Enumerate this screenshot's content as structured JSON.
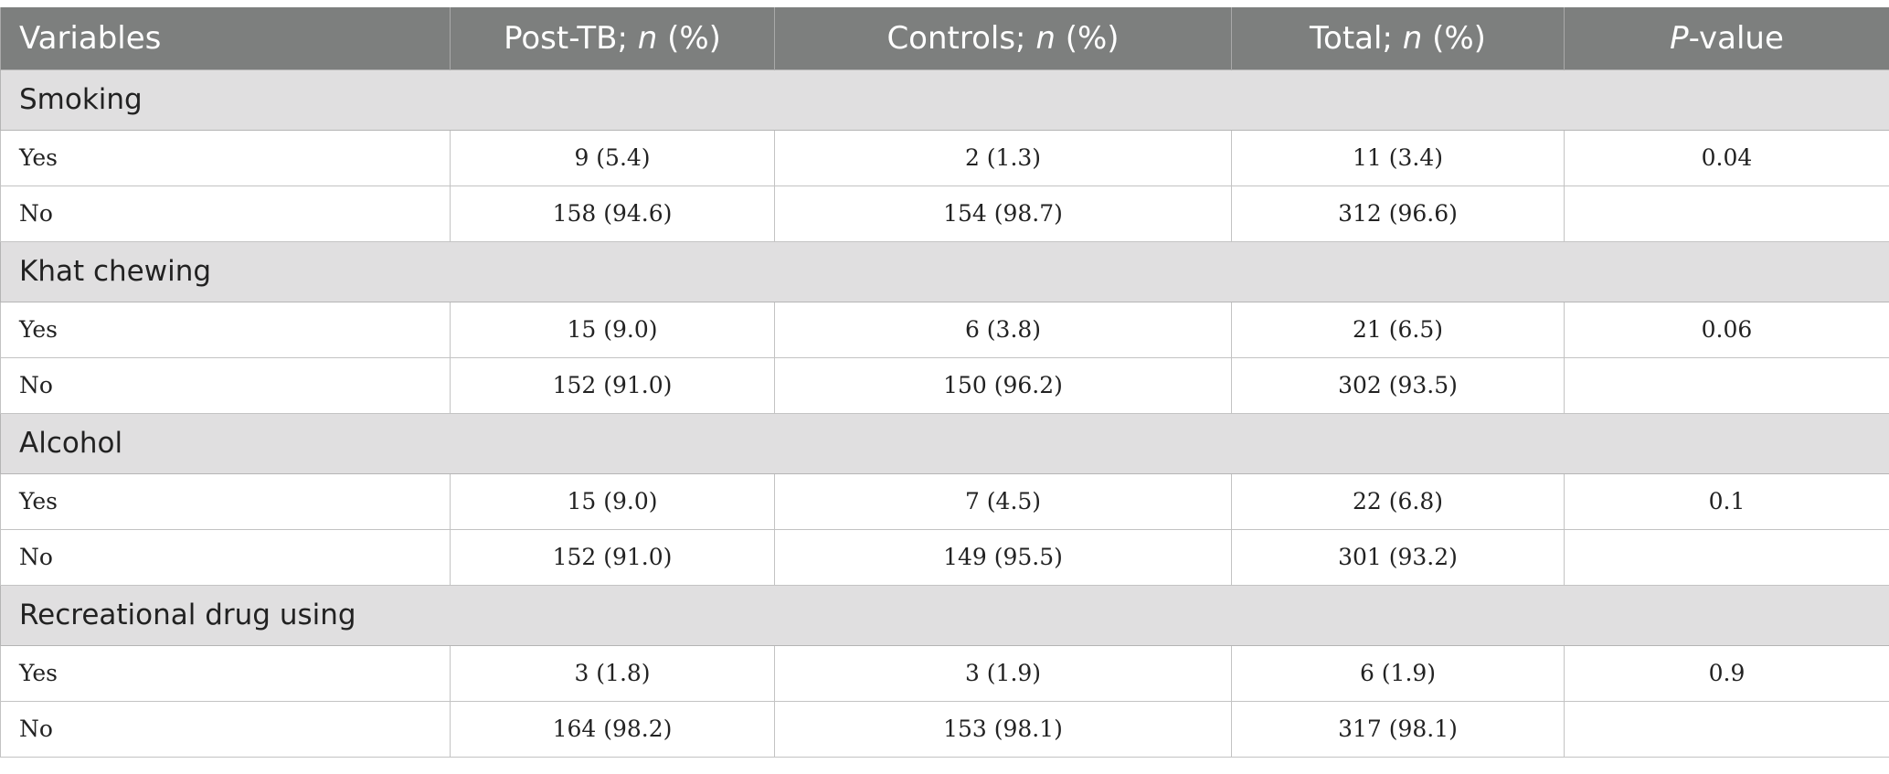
{
  "header": {
    "variables": "Variables",
    "post_tb_main": "Post-TB; ",
    "post_tb_n": "n",
    "post_tb_pct": " (%)",
    "controls_main": "Controls; ",
    "controls_n": "n",
    "controls_pct": " (%)",
    "total_main": "Total; ",
    "total_n": "n",
    "total_pct": " (%)",
    "p_italic": "P",
    "p_rest": "-value"
  },
  "sections": [
    {
      "title": "Smoking",
      "rows": [
        {
          "label": "Yes",
          "post_tb": "9 (5.4)",
          "controls": "2 (1.3)",
          "total": "11 (3.4)",
          "p": "0.04"
        },
        {
          "label": "No",
          "post_tb": "158 (94.6)",
          "controls": "154 (98.7)",
          "total": "312 (96.6)",
          "p": ""
        }
      ]
    },
    {
      "title": "Khat chewing",
      "rows": [
        {
          "label": "Yes",
          "post_tb": "15 (9.0)",
          "controls": "6 (3.8)",
          "total": "21 (6.5)",
          "p": "0.06"
        },
        {
          "label": "No",
          "post_tb": "152 (91.0)",
          "controls": "150 (96.2)",
          "total": "302 (93.5)",
          "p": ""
        }
      ]
    },
    {
      "title": "Alcohol",
      "rows": [
        {
          "label": "Yes",
          "post_tb": "15 (9.0)",
          "controls": "7 (4.5)",
          "total": "22 (6.8)",
          "p": "0.1"
        },
        {
          "label": "No",
          "post_tb": "152 (91.0)",
          "controls": "149 (95.5)",
          "total": "301 (93.2)",
          "p": ""
        }
      ]
    },
    {
      "title": "Recreational drug using",
      "rows": [
        {
          "label": "Yes",
          "post_tb": "3 (1.8)",
          "controls": "3 (1.9)",
          "total": "6 (1.9)",
          "p": "0.9"
        },
        {
          "label": "No",
          "post_tb": "164 (98.2)",
          "controls": "153 (98.1)",
          "total": "317 (98.1)",
          "p": ""
        }
      ]
    }
  ]
}
